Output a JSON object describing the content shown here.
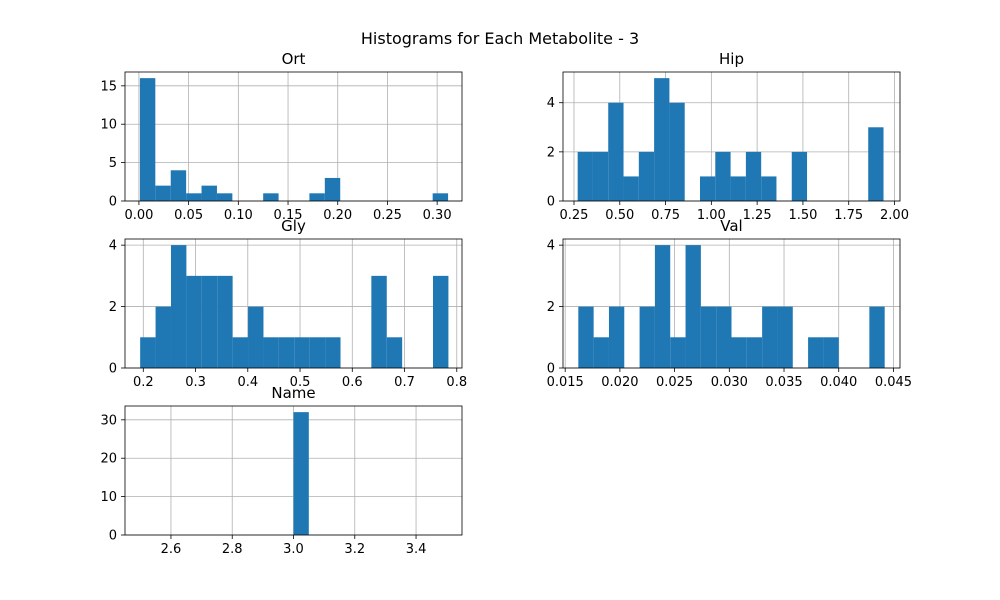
{
  "figure_title": "Histograms for Each Metabolite - 3",
  "chart_data": [
    {
      "type": "bar",
      "title": "Ort",
      "xlabel": "",
      "ylabel": "",
      "xlim": [
        -0.014,
        0.325
      ],
      "ylim": [
        0,
        16.8
      ],
      "xticks": [
        0.0,
        0.05,
        0.1,
        0.15,
        0.2,
        0.25,
        0.3
      ],
      "xtick_labels": [
        "0.00",
        "0.05",
        "0.10",
        "0.15",
        "0.20",
        "0.25",
        "0.30"
      ],
      "yticks": [
        0,
        5,
        10,
        15
      ],
      "ytick_labels": [
        "0",
        "5",
        "10",
        "15"
      ],
      "grid": true,
      "bin_edges": [
        0.001,
        0.0165,
        0.032,
        0.0475,
        0.063,
        0.0785,
        0.094,
        0.1095,
        0.125,
        0.1405,
        0.156,
        0.1715,
        0.187,
        0.2025,
        0.218,
        0.2335,
        0.249,
        0.2645,
        0.28,
        0.2955,
        0.311
      ],
      "values": [
        16,
        2,
        4,
        1,
        2,
        1,
        0,
        0,
        1,
        0,
        0,
        1,
        3,
        0,
        0,
        0,
        0,
        0,
        0,
        1
      ]
    },
    {
      "type": "bar",
      "title": "Hip",
      "xlabel": "",
      "ylabel": "",
      "xlim": [
        0.19,
        2.03
      ],
      "ylim": [
        0,
        5.25
      ],
      "xticks": [
        0.25,
        0.5,
        0.75,
        1.0,
        1.25,
        1.5,
        1.75,
        2.0
      ],
      "xtick_labels": [
        "0.25",
        "0.50",
        "0.75",
        "1.00",
        "1.25",
        "1.50",
        "1.75",
        "2.00"
      ],
      "yticks": [
        0,
        2,
        4
      ],
      "ytick_labels": [
        "0",
        "2",
        "4"
      ],
      "grid": true,
      "bin_edges": [
        0.27,
        0.3535,
        0.437,
        0.5205,
        0.604,
        0.6875,
        0.771,
        0.8545,
        0.938,
        1.0215,
        1.105,
        1.1885,
        1.272,
        1.3555,
        1.439,
        1.5225,
        1.606,
        1.6895,
        1.773,
        1.8565,
        1.94
      ],
      "values": [
        2,
        2,
        4,
        1,
        2,
        5,
        4,
        0,
        1,
        2,
        1,
        2,
        1,
        0,
        2,
        0,
        0,
        0,
        0,
        3
      ]
    },
    {
      "type": "bar",
      "title": "Gly",
      "xlabel": "",
      "ylabel": "",
      "xlim": [
        0.165,
        0.81
      ],
      "ylim": [
        0,
        4.2
      ],
      "xticks": [
        0.2,
        0.3,
        0.4,
        0.5,
        0.6,
        0.7,
        0.8
      ],
      "xtick_labels": [
        "0.2",
        "0.3",
        "0.4",
        "0.5",
        "0.6",
        "0.7",
        "0.8"
      ],
      "yticks": [
        0,
        2,
        4
      ],
      "ytick_labels": [
        "0",
        "2",
        "4"
      ],
      "grid": true,
      "bin_edges": [
        0.194,
        0.2235,
        0.253,
        0.2825,
        0.312,
        0.3415,
        0.371,
        0.4005,
        0.43,
        0.4595,
        0.489,
        0.5185,
        0.548,
        0.5775,
        0.607,
        0.6365,
        0.666,
        0.6955,
        0.725,
        0.7545,
        0.784
      ],
      "values": [
        1,
        2,
        4,
        3,
        3,
        3,
        1,
        2,
        1,
        1,
        1,
        1,
        1,
        0,
        0,
        3,
        1,
        0,
        0,
        3
      ]
    },
    {
      "type": "bar",
      "title": "Val",
      "xlabel": "",
      "ylabel": "",
      "xlim": [
        0.0148,
        0.0456
      ],
      "ylim": [
        0,
        4.2
      ],
      "xticks": [
        0.015,
        0.02,
        0.025,
        0.03,
        0.035,
        0.04,
        0.045
      ],
      "xtick_labels": [
        "0.015",
        "0.020",
        "0.025",
        "0.030",
        "0.035",
        "0.040",
        "0.045"
      ],
      "yticks": [
        0,
        2,
        4
      ],
      "ytick_labels": [
        "0",
        "2",
        "4"
      ],
      "grid": true,
      "bin_edges": [
        0.0162,
        0.0176,
        0.019,
        0.0204,
        0.0218,
        0.0232,
        0.0246,
        0.026,
        0.0274,
        0.0288,
        0.0302,
        0.0316,
        0.033,
        0.0344,
        0.0358,
        0.0372,
        0.0386,
        0.04,
        0.0414,
        0.0428,
        0.0442
      ],
      "values": [
        2,
        1,
        2,
        0,
        2,
        4,
        1,
        4,
        2,
        2,
        1,
        1,
        2,
        2,
        0,
        1,
        1,
        0,
        0,
        2
      ]
    },
    {
      "type": "bar",
      "title": "Name",
      "xlabel": "",
      "ylabel": "",
      "xlim": [
        2.45,
        3.55
      ],
      "ylim": [
        0,
        33.6
      ],
      "xticks": [
        2.6,
        2.8,
        3.0,
        3.2,
        3.4
      ],
      "xtick_labels": [
        "2.6",
        "2.8",
        "3.0",
        "3.2",
        "3.4"
      ],
      "yticks": [
        0,
        10,
        20,
        30
      ],
      "ytick_labels": [
        "0",
        "10",
        "20",
        "30"
      ],
      "grid": true,
      "bin_edges": [
        3.0,
        3.05
      ],
      "values": [
        32
      ]
    }
  ]
}
